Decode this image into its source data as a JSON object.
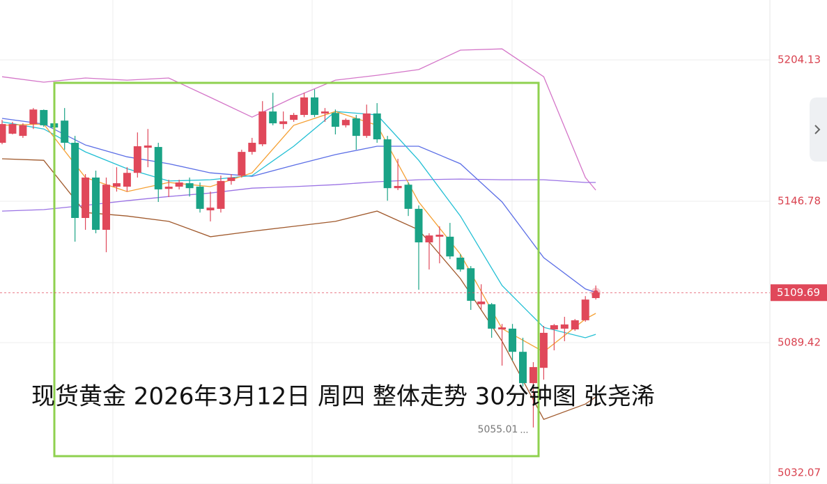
{
  "chart_data": {
    "type": "candlestick",
    "title": "现货黄金 2026年3月12日 周四 整体走势 30分钟图 张尧浠",
    "up_color": "#e0485a",
    "down_color": "#1aa386",
    "ylim": [
      5032.07,
      5228.43
    ],
    "yticks": [
      5032.07,
      5089.42,
      5146.78,
      5204.13
    ],
    "grid": true,
    "open": [
      5170.5,
      5174.2,
      5173.3,
      5178.1,
      5183.8,
      5178.4,
      5179.5,
      5170.5,
      5140.0,
      5156.4,
      5135.2,
      5152.7,
      5152.7,
      5158.3,
      5168.5,
      5168.8,
      5151.8,
      5152.7,
      5154.1,
      5152.7,
      5143.1,
      5143.7,
      5155.0,
      5157.2,
      5166.8,
      5169.9,
      5183.2,
      5178.1,
      5179.8,
      5181.8,
      5188.9,
      5182.4,
      5182.6,
      5177.6,
      5180.4,
      5173.3,
      5182.4,
      5171.9,
      5152.1,
      5153.5,
      5143.7,
      5130.1,
      5132.4,
      5132.4,
      5123.9,
      5119.6,
      5105.0,
      5105.0,
      5094.8,
      5095.1,
      5085.7,
      5073.0,
      5079.2,
      5094.8,
      5095.1,
      5094.8,
      5098.5,
      5107.5
    ],
    "high": [
      5179.8,
      5179.0,
      5178.4,
      5184.6,
      5184.0,
      5179.0,
      5184.6,
      5173.3,
      5157.8,
      5159.2,
      5156.4,
      5160.6,
      5160.6,
      5174.7,
      5176.1,
      5170.5,
      5155.5,
      5155.5,
      5156.4,
      5154.4,
      5150.7,
      5157.2,
      5157.8,
      5167.7,
      5172.5,
      5187.4,
      5190.8,
      5183.2,
      5182.6,
      5190.8,
      5192.2,
      5184.6,
      5184.0,
      5180.4,
      5181.8,
      5186.0,
      5186.6,
      5173.3,
      5164.0,
      5154.4,
      5145.1,
      5133.8,
      5136.6,
      5138.0,
      5125.3,
      5120.5,
      5113.1,
      5105.5,
      5097.0,
      5097.0,
      5091.4,
      5081.5,
      5096.2,
      5097.0,
      5099.9,
      5099.0,
      5108.3,
      5112.6
    ],
    "low": [
      5169.9,
      5173.9,
      5172.5,
      5176.1,
      5177.0,
      5176.1,
      5167.7,
      5130.4,
      5135.2,
      5133.8,
      5126.1,
      5150.7,
      5150.7,
      5156.4,
      5160.6,
      5146.5,
      5148.5,
      5151.6,
      5148.7,
      5142.2,
      5138.6,
      5142.2,
      5153.5,
      5156.4,
      5165.7,
      5169.1,
      5177.6,
      5176.1,
      5179.0,
      5180.9,
      5180.9,
      5179.0,
      5173.9,
      5176.7,
      5167.7,
      5172.5,
      5170.5,
      5147.0,
      5151.3,
      5140.8,
      5110.9,
      5119.1,
      5121.6,
      5123.3,
      5118.2,
      5102.7,
      5102.7,
      5091.4,
      5080.1,
      5082.1,
      5071.6,
      5055.01,
      5074.4,
      5086.3,
      5090.0,
      5094.2,
      5097.9,
      5106.9
    ],
    "close": [
      5178.1,
      5178.1,
      5177.6,
      5184.0,
      5177.6,
      5176.7,
      5170.5,
      5140.0,
      5156.4,
      5135.2,
      5153.5,
      5154.1,
      5158.3,
      5169.1,
      5169.4,
      5151.6,
      5152.7,
      5154.4,
      5152.1,
      5143.7,
      5144.2,
      5155.0,
      5156.4,
      5166.8,
      5170.5,
      5183.2,
      5178.4,
      5179.2,
      5181.8,
      5188.9,
      5181.8,
      5183.2,
      5177.0,
      5179.8,
      5173.3,
      5182.4,
      5171.9,
      5152.1,
      5153.0,
      5143.7,
      5130.1,
      5132.9,
      5133.2,
      5124.4,
      5119.1,
      5106.4,
      5106.1,
      5095.1,
      5095.6,
      5085.7,
      5073.0,
      5079.5,
      5093.4,
      5096.5,
      5096.8,
      5098.5,
      5106.9,
      5109.69
    ],
    "lines": [
      {
        "color": "#d475c8",
        "x": [
          0,
          4,
          8,
          12,
          16,
          20,
          24,
          28,
          32,
          36,
          40,
          44,
          48,
          52,
          56,
          57
        ],
        "values": [
          5197.3,
          5195.1,
          5196.8,
          5195.9,
          5196.8,
          5188.9,
          5180.9,
          5188.9,
          5195.9,
          5197.9,
          5200.2,
          5208.1,
          5208.6,
          5197.3,
          5156.4,
          5151.3
        ]
      },
      {
        "color": "#a0592c",
        "x": [
          0,
          4,
          8,
          12,
          16,
          20,
          24,
          28,
          32,
          36,
          40,
          44,
          48,
          52,
          56,
          57
        ],
        "values": [
          5164.0,
          5163.4,
          5142.2,
          5140.8,
          5138.6,
          5132.4,
          5134.6,
          5136.6,
          5138.6,
          5142.8,
          5135.2,
          5115.4,
          5090.0,
          5058.3,
          5064.5,
          5067.4
        ]
      },
      {
        "color": "#9a72e4",
        "x": [
          0,
          4,
          8,
          12,
          16,
          20,
          24,
          28,
          32,
          36,
          40,
          44,
          48,
          52,
          56,
          57
        ],
        "values": [
          5142.8,
          5143.4,
          5145.1,
          5147.0,
          5148.7,
          5150.1,
          5152.1,
          5152.7,
          5153.5,
          5154.7,
          5155.5,
          5155.8,
          5155.5,
          5155.5,
          5154.4,
          5154.4
        ]
      },
      {
        "color": "#5b6ee6",
        "x": [
          0,
          4,
          8,
          12,
          16,
          20,
          24,
          28,
          32,
          36,
          40,
          44,
          48,
          52,
          56,
          57
        ],
        "values": [
          5180.4,
          5178.1,
          5169.6,
          5164.8,
          5162.0,
          5158.3,
          5156.9,
          5161.4,
          5165.7,
          5169.1,
          5169.1,
          5162.0,
          5146.5,
          5123.9,
          5111.2,
          5109.8
        ]
      },
      {
        "color": "#22bfd4",
        "x": [
          0,
          4,
          8,
          12,
          16,
          20,
          24,
          28,
          32,
          36,
          40,
          44,
          48,
          52,
          56,
          57
        ],
        "values": [
          5179.0,
          5176.1,
          5166.8,
          5160.0,
          5155.0,
          5155.5,
          5157.2,
          5169.1,
          5183.2,
          5181.8,
          5163.4,
          5140.8,
          5112.6,
          5095.6,
          5091.4,
          5092.8
        ]
      },
      {
        "color": "#f5a033",
        "x": [
          0,
          4,
          8,
          12,
          16,
          20,
          24,
          28,
          32,
          36,
          40,
          44,
          48,
          52,
          56,
          57
        ],
        "values": [
          5177.6,
          5178.1,
          5156.4,
          5150.7,
          5154.4,
          5152.7,
          5158.3,
          5177.6,
          5183.2,
          5177.6,
          5146.5,
          5125.3,
          5095.1,
          5085.7,
          5099.0,
          5101.3
        ]
      }
    ]
  }
}
